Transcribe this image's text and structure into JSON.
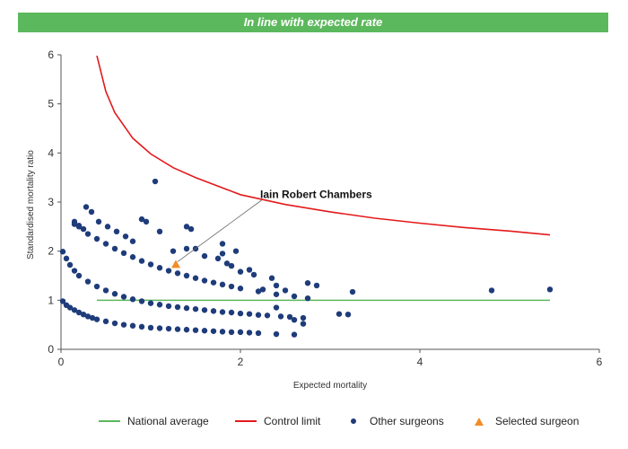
{
  "banner": {
    "title": "In line with expected rate"
  },
  "chart_data": {
    "type": "scatter",
    "xlabel": "Expected mortality",
    "ylabel": "Standardised mortality ratio",
    "xlim": [
      0,
      6
    ],
    "ylim": [
      0,
      6
    ],
    "xticks": [
      "0",
      "2",
      "4",
      "6"
    ],
    "yticks": [
      "0",
      "1",
      "2",
      "3",
      "4",
      "5",
      "6"
    ],
    "grid": false,
    "legend_position": "bottom",
    "colors": {
      "national": "#5cb85c",
      "control": "#e31a1c",
      "others": "#1f3c7a",
      "selected": "#f28c28"
    },
    "series": [
      {
        "name": "National average",
        "type": "line",
        "x": [
          0.4,
          5.45
        ],
        "y": [
          1,
          1
        ]
      },
      {
        "name": "Control limit",
        "type": "line",
        "x": [
          0.4,
          0.5,
          0.6,
          0.8,
          1.0,
          1.25,
          1.5,
          2.0,
          2.5,
          3.0,
          3.5,
          4.0,
          4.5,
          5.0,
          5.45
        ],
        "y": [
          5.98,
          5.25,
          4.82,
          4.3,
          3.98,
          3.7,
          3.5,
          3.15,
          2.95,
          2.8,
          2.67,
          2.57,
          2.48,
          2.41,
          2.33
        ]
      },
      {
        "name": "Other surgeons",
        "type": "scatter",
        "x": [
          0.02,
          0.06,
          0.1,
          0.15,
          0.2,
          0.25,
          0.3,
          0.35,
          0.4,
          0.5,
          0.6,
          0.7,
          0.8,
          0.9,
          1.0,
          1.1,
          1.2,
          1.3,
          1.4,
          1.5,
          1.6,
          1.7,
          1.8,
          1.9,
          2.0,
          2.1,
          2.2,
          2.4,
          2.6,
          0.02,
          0.06,
          0.1,
          0.15,
          0.2,
          0.3,
          0.4,
          0.5,
          0.6,
          0.7,
          0.8,
          0.9,
          1.0,
          1.1,
          1.2,
          1.3,
          1.4,
          1.5,
          1.6,
          1.7,
          1.8,
          1.9,
          2.0,
          2.1,
          2.2,
          2.3,
          2.45,
          2.55,
          2.7,
          0.15,
          0.2,
          0.25,
          0.3,
          0.4,
          0.5,
          0.6,
          0.7,
          0.8,
          0.9,
          1.0,
          1.1,
          1.2,
          1.3,
          1.4,
          1.5,
          1.6,
          1.7,
          1.8,
          1.9,
          2.0,
          2.2,
          2.4,
          2.6,
          2.75,
          0.15,
          0.2,
          0.28,
          0.34,
          0.42,
          0.52,
          0.62,
          0.72,
          0.8,
          0.9,
          0.95,
          1.1,
          1.25,
          1.4,
          1.45,
          1.5,
          1.6,
          1.75,
          1.8,
          1.85,
          1.9,
          2.0,
          2.1,
          2.15,
          2.35,
          2.4,
          2.5,
          2.75,
          2.85,
          1.05,
          1.4,
          1.8,
          1.95,
          2.25,
          2.4,
          2.6,
          2.7,
          3.1,
          3.2,
          3.25,
          4.8,
          5.45
        ],
        "y": [
          0.98,
          0.9,
          0.85,
          0.8,
          0.75,
          0.71,
          0.67,
          0.64,
          0.61,
          0.57,
          0.53,
          0.5,
          0.48,
          0.46,
          0.44,
          0.43,
          0.42,
          0.41,
          0.4,
          0.39,
          0.38,
          0.37,
          0.36,
          0.35,
          0.35,
          0.34,
          0.33,
          0.31,
          0.3,
          1.99,
          1.85,
          1.72,
          1.6,
          1.5,
          1.38,
          1.28,
          1.2,
          1.13,
          1.07,
          1.02,
          0.98,
          0.94,
          0.91,
          0.88,
          0.86,
          0.84,
          0.82,
          0.8,
          0.78,
          0.76,
          0.75,
          0.73,
          0.72,
          0.7,
          0.69,
          0.67,
          0.66,
          0.64,
          2.6,
          2.52,
          2.45,
          2.35,
          2.25,
          2.15,
          2.05,
          1.96,
          1.88,
          1.8,
          1.73,
          1.66,
          1.6,
          1.55,
          1.5,
          1.45,
          1.4,
          1.36,
          1.32,
          1.28,
          1.24,
          1.18,
          1.12,
          1.08,
          1.04,
          2.55,
          2.5,
          2.9,
          2.8,
          2.6,
          2.5,
          2.4,
          2.3,
          2.2,
          2.65,
          2.6,
          2.4,
          2.0,
          2.5,
          2.45,
          2.05,
          1.9,
          1.85,
          2.15,
          1.75,
          1.7,
          1.58,
          1.62,
          1.52,
          1.45,
          1.3,
          1.2,
          1.35,
          1.3,
          3.42,
          2.05,
          1.95,
          2.0,
          1.22,
          0.85,
          0.6,
          0.52,
          0.72,
          0.71,
          1.17,
          1.2,
          1.22
        ]
      },
      {
        "name": "Selected surgeon",
        "type": "scatter",
        "marker": "triangle",
        "x": [
          1.28
        ],
        "y": [
          1.73
        ]
      }
    ],
    "annotations": [
      {
        "text": "Iain Robert Chambers",
        "x": 1.28,
        "y": 1.73,
        "label_x": 2.18,
        "label_y": 3.08
      }
    ]
  }
}
